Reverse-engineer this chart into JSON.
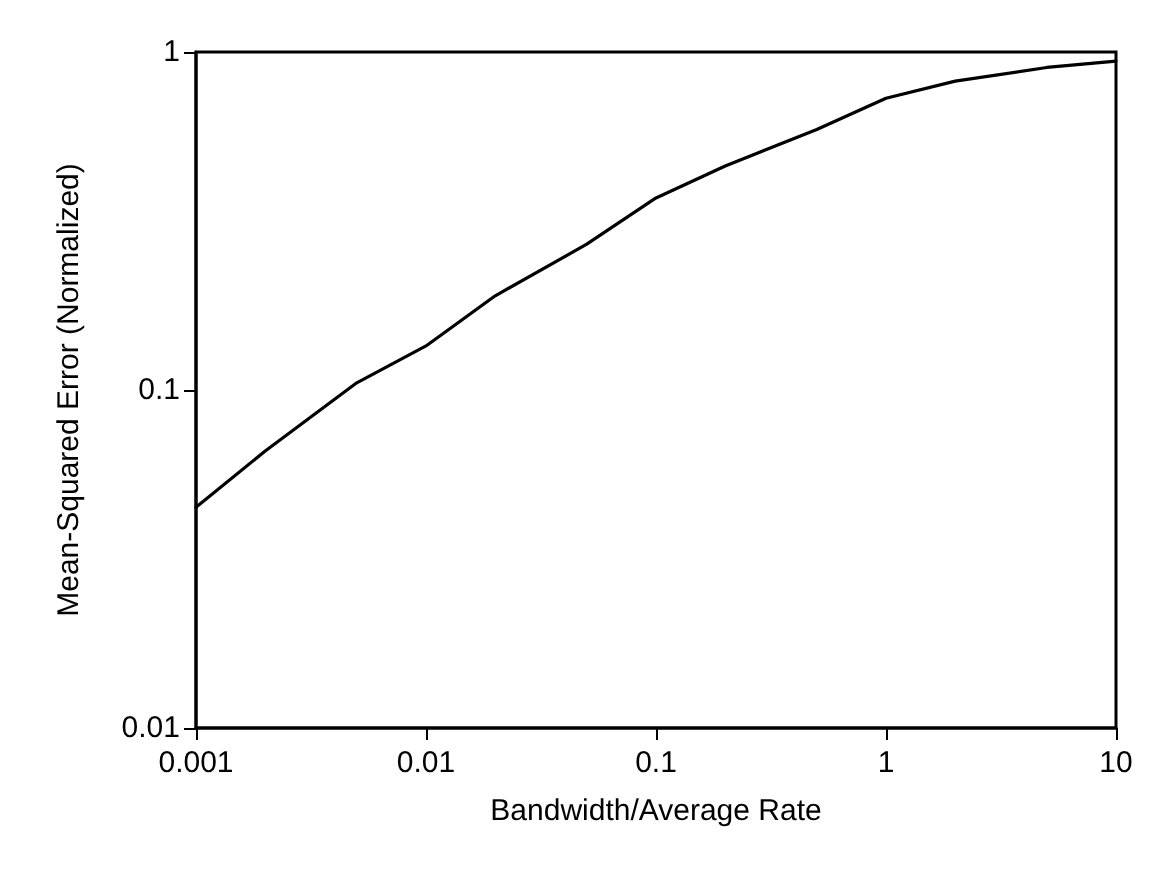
{
  "chart_data": {
    "type": "line",
    "xlabel": "Bandwidth/Average Rate",
    "ylabel": "Mean-Squared Error (Normalized)",
    "log": "xy",
    "xlim": [
      0.001,
      10
    ],
    "xticks": [
      0.001,
      0.01,
      0.1,
      1,
      10
    ],
    "ylim": [
      0.01,
      1
    ],
    "yticks": [
      0.01,
      0.1,
      1
    ],
    "grid": false,
    "marker": "none",
    "line_style": "solid",
    "x": [
      0.001,
      0.002,
      0.005,
      0.01,
      0.02,
      0.05,
      0.1,
      0.2,
      0.5,
      1,
      2,
      5,
      10
    ],
    "series": [
      {
        "color": "#000000",
        "values": [
          0.045,
          0.066,
          0.105,
          0.135,
          0.19,
          0.27,
          0.37,
          0.46,
          0.59,
          0.73,
          0.82,
          0.9,
          0.94
        ]
      }
    ]
  }
}
